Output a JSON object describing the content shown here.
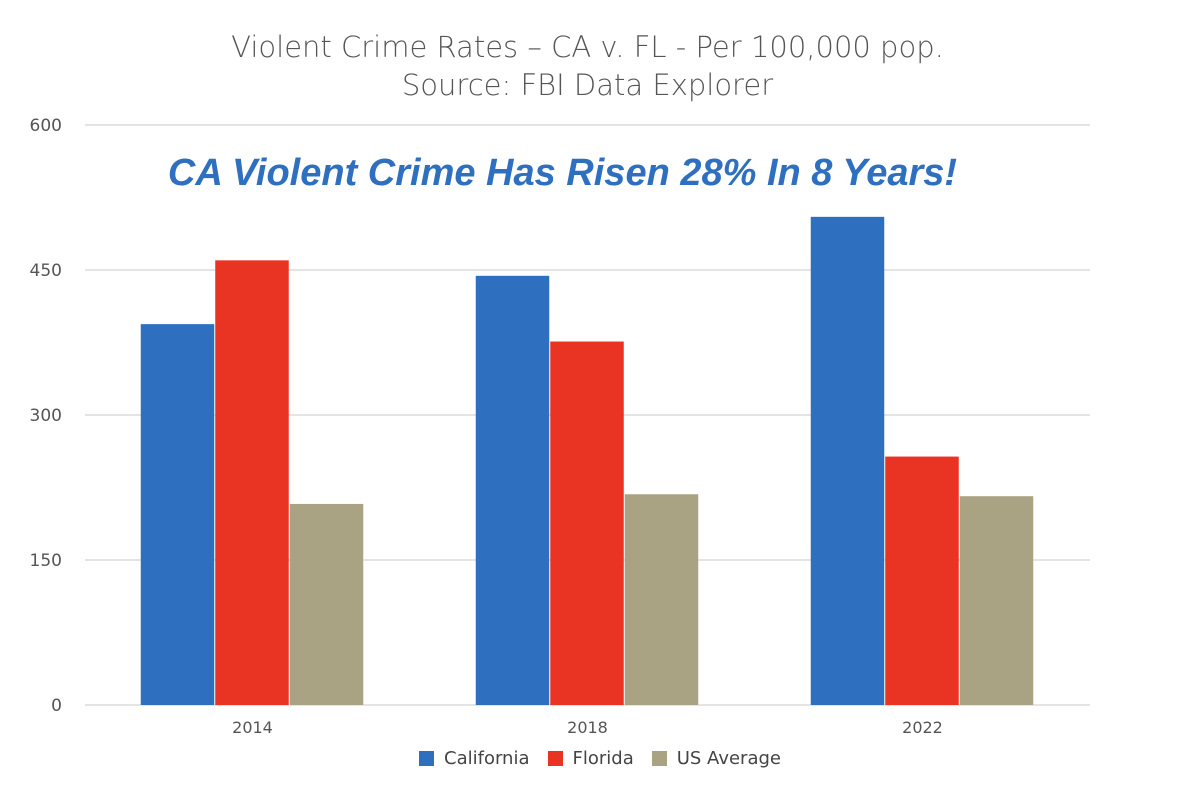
{
  "chart_data": {
    "type": "bar",
    "title": "Violent Crime Rates – CA v.  FL - Per 100,000 pop.",
    "subtitle": "Source: FBI Data Explorer",
    "annotation": "CA Violent Crime Has Risen 28% In 8 Years!",
    "xlabel": "",
    "ylabel": "",
    "categories": [
      "2014",
      "2018",
      "2022"
    ],
    "yticks": [
      "0",
      "150",
      "300",
      "450",
      "600"
    ],
    "ylim": [
      0,
      600
    ],
    "grid": true,
    "legend_position": "bottom",
    "series": [
      {
        "name": "California",
        "color": "#2f6fbf",
        "values": [
          394,
          444,
          505
        ]
      },
      {
        "name": "Florida",
        "color": "#e93323",
        "values": [
          460,
          376,
          257
        ]
      },
      {
        "name": "US Average",
        "color": "#a9a384",
        "values": [
          208,
          218,
          216
        ]
      }
    ]
  }
}
